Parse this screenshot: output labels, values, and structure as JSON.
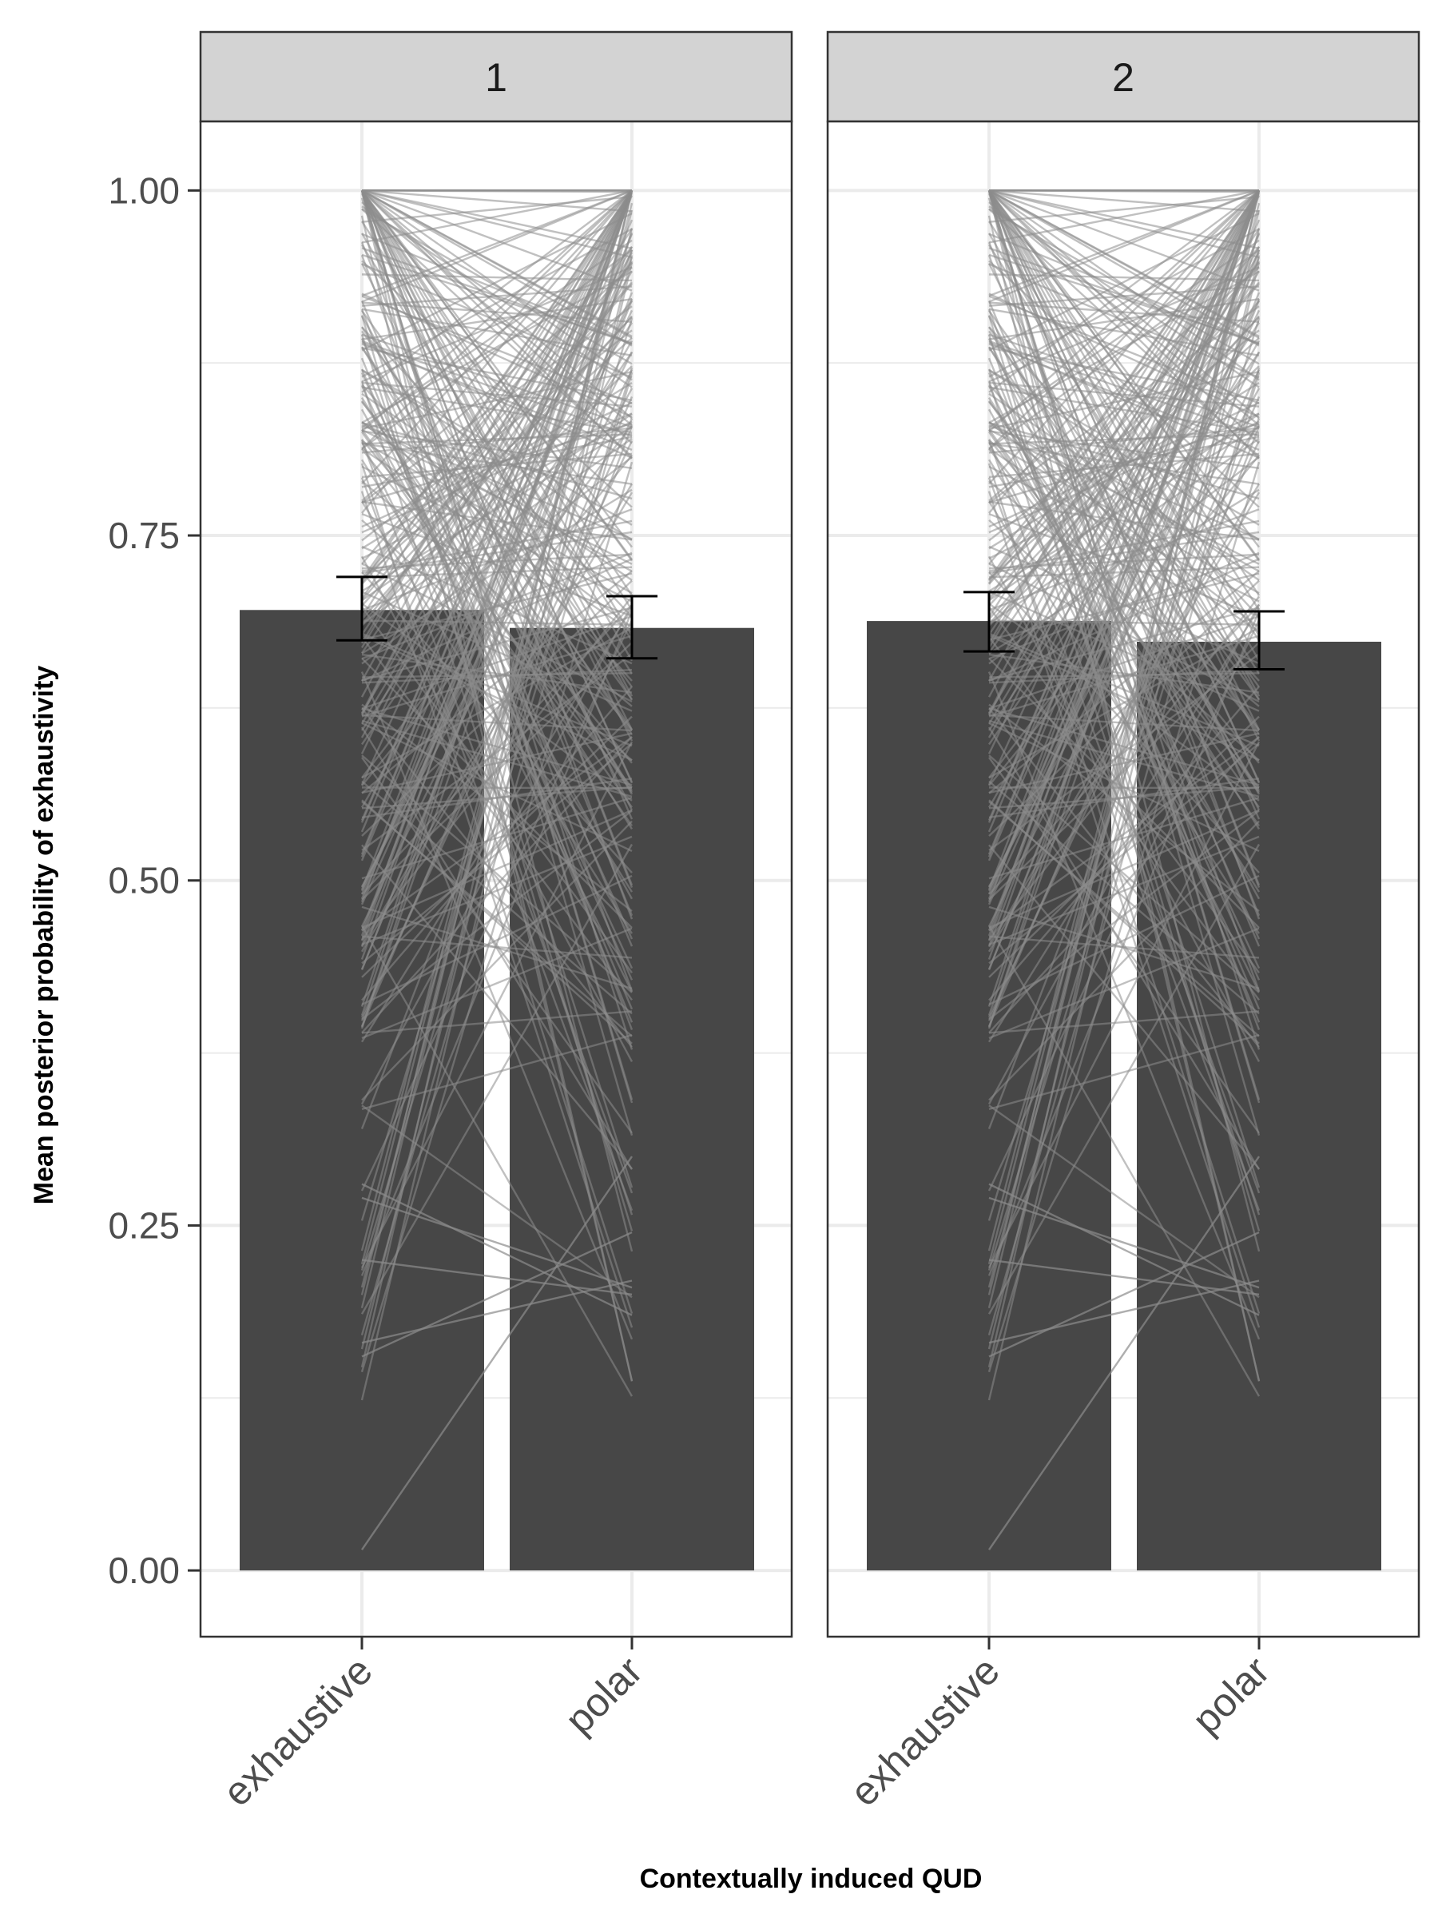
{
  "chart_data": {
    "type": "bar",
    "xlabel": "Contextually induced QUD",
    "ylabel": "Mean posterior probability of exhaustivity",
    "ylim": [
      -0.048,
      1.05
    ],
    "yticks": [
      "0.00",
      "0.25",
      "0.50",
      "0.75",
      "1.00"
    ],
    "grid": true,
    "categories": [
      "exhaustive",
      "polar"
    ],
    "colors": {
      "bar": "#474747",
      "error": "#000000",
      "line": "#8c8c8c",
      "grid": "#ebebeb",
      "strip": "#d3d3d3"
    },
    "facets": [
      {
        "label": "1",
        "means": [
          0.696,
          0.683
        ],
        "ci_low": [
          0.674,
          0.661
        ],
        "ci_high": [
          0.72,
          0.706
        ]
      },
      {
        "label": "2",
        "means": [
          0.688,
          0.673
        ],
        "ci_low": [
          0.666,
          0.653
        ],
        "ci_high": [
          0.709,
          0.695
        ]
      }
    ],
    "participant_lines_note": "approximately 300 participant lines per facet (exhaustive to polar); values drawn from estimated distribution",
    "participant_lines_count": 300
  }
}
